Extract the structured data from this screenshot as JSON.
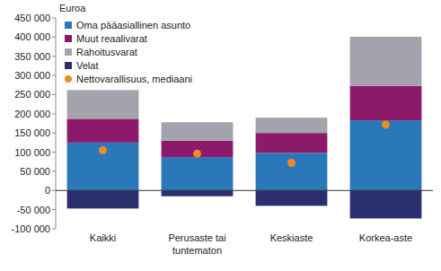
{
  "chart_data": {
    "type": "bar",
    "stacked": true,
    "y_label": "Euroa",
    "categories": [
      "Kaikki",
      "Perusaste tai tuntematon",
      "Keskiaste",
      "Korkea-aste"
    ],
    "series": [
      {
        "name": "Oma pääasiallinen asunto",
        "color": "#2a78b8",
        "values": [
          125000,
          87000,
          98000,
          183000
        ]
      },
      {
        "name": "Muut reaalivarat",
        "color": "#8c1a6a",
        "values": [
          62000,
          43000,
          52000,
          90000
        ]
      },
      {
        "name": "Rahoitusvarat",
        "color": "#a3a3ab",
        "values": [
          75000,
          48000,
          40000,
          128000
        ]
      },
      {
        "name": "Velat",
        "color": "#2b2f6e",
        "values": [
          -47000,
          -15000,
          -40000,
          -73000
        ]
      },
      {
        "name": "Nettovarallisuus, mediaani",
        "color": "#f08a24",
        "type": "scatter",
        "marker": "circle",
        "values": [
          105000,
          96000,
          72000,
          172000
        ]
      }
    ],
    "ylim": [
      -100000,
      450000
    ],
    "yticks": [
      {
        "value": -100000,
        "label": "-100 000"
      },
      {
        "value": -50000,
        "label": "-50 000"
      },
      0,
      {
        "value": 50000,
        "label": "50 000"
      },
      {
        "value": 100000,
        "label": "100 000"
      },
      {
        "value": 150000,
        "label": "150 000"
      },
      {
        "value": 200000,
        "label": "200 000"
      },
      {
        "value": 250000,
        "label": "250 000"
      },
      {
        "value": 300000,
        "label": "300 000"
      },
      {
        "value": 350000,
        "label": "350 000"
      },
      {
        "value": 400000,
        "label": "400 000"
      },
      {
        "value": 450000,
        "label": "450 000"
      }
    ],
    "grid": false,
    "legend": "top-left"
  }
}
